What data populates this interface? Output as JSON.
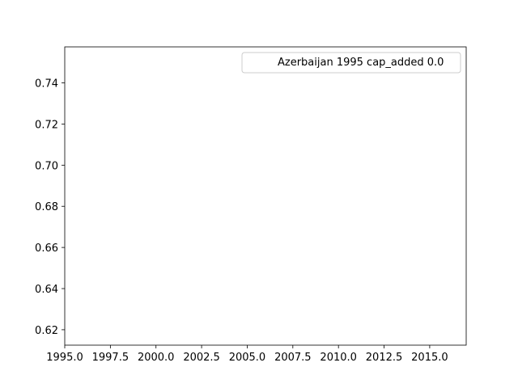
{
  "chart_data": {
    "type": "line",
    "title": "",
    "xlabel": "",
    "ylabel": "",
    "xlim": [
      1995.0,
      2017.0
    ],
    "ylim": [
      0.6125,
      0.7575
    ],
    "x_ticks": [
      1995.0,
      1997.5,
      2000.0,
      2002.5,
      2005.0,
      2007.5,
      2010.0,
      2012.5,
      2015.0
    ],
    "x_tick_labels": [
      "1995.0",
      "1997.5",
      "2000.0",
      "2002.5",
      "2005.0",
      "2007.5",
      "2010.0",
      "2012.5",
      "2015.0"
    ],
    "y_ticks": [
      0.62,
      0.64,
      0.66,
      0.68,
      0.7,
      0.72,
      0.74
    ],
    "y_tick_labels": [
      "0.62",
      "0.64",
      "0.66",
      "0.68",
      "0.70",
      "0.72",
      "0.74"
    ],
    "grid": false,
    "legend_position": "top-right",
    "series": [
      {
        "name": "Azerbaijan 1995 cap_added 0.0",
        "x": [],
        "y": []
      }
    ]
  }
}
